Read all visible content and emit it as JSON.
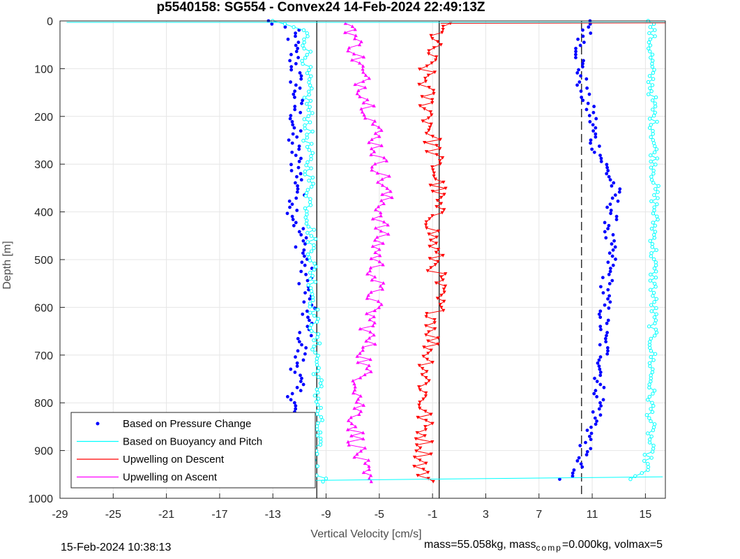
{
  "chart_data": {
    "type": "scatter",
    "title": "p5540158: SG554 - Convex24 14-Feb-2024 22:49:13Z",
    "xlabel": "Vertical Velocity [cm/s]",
    "ylabel": "Depth [m]",
    "xlim": [
      -29,
      16.5
    ],
    "ylim": [
      0,
      1000
    ],
    "y_reversed": true,
    "xticks": [
      -29,
      -25,
      -21,
      -17,
      -13,
      -9,
      -5,
      -1,
      3,
      7,
      11,
      15
    ],
    "yticks": [
      0,
      100,
      200,
      300,
      400,
      500,
      600,
      700,
      800,
      900,
      1000
    ],
    "grid": true,
    "legend_position": "bottom-left",
    "reference_lines": [
      {
        "x": -9.7,
        "style": "solid"
      },
      {
        "x": -0.5,
        "style": "solid"
      },
      {
        "x": 10.2,
        "style": "dashed"
      }
    ],
    "series": [
      {
        "name": "Based on Pressure Change",
        "color": "#0000ff",
        "marker": "dot",
        "descent": {
          "depth": [
            0,
            20,
            60,
            100,
            150,
            200,
            250,
            300,
            350,
            400,
            450,
            500,
            550,
            600,
            650,
            700,
            750,
            800,
            850,
            900,
            940,
            960
          ],
          "velocity": [
            -13.5,
            -11.5,
            -11.5,
            -11.3,
            -11.2,
            -11.3,
            -11.5,
            -11.2,
            -11.0,
            -11.4,
            -10.9,
            -10.6,
            -10.5,
            -10.4,
            -10.5,
            -11.0,
            -11.2,
            -11.4,
            -11.8,
            -12.2,
            -11.8,
            -11.6
          ]
        },
        "ascent": {
          "depth": [
            960,
            950,
            920,
            880,
            850,
            800,
            760,
            700,
            650,
            600,
            550,
            500,
            450,
            400,
            350,
            300,
            250,
            200,
            150,
            100,
            60,
            20,
            0
          ],
          "velocity": [
            8.4,
            9.5,
            10.2,
            10.6,
            11.1,
            11.6,
            11.5,
            11.9,
            11.8,
            11.9,
            12.1,
            12.4,
            12.2,
            12.5,
            12.7,
            11.9,
            11.1,
            11.0,
            10.3,
            10.1,
            10.1,
            10.6,
            11.0
          ]
        }
      },
      {
        "name": "Based on Buoyancy and Pitch",
        "color": "#00ffff",
        "marker": "circle",
        "descent": {
          "depth": [
            0,
            20,
            60,
            100,
            150,
            200,
            250,
            300,
            350,
            400,
            450,
            500,
            550,
            600,
            650,
            700,
            750,
            800,
            850,
            900,
            940,
            965
          ],
          "velocity": [
            -13.0,
            -10.6,
            -10.4,
            -10.5,
            -10.4,
            -10.3,
            -10.4,
            -10.3,
            -10.2,
            -10.3,
            -10.1,
            -10.0,
            -10.0,
            -9.9,
            -9.9,
            -9.7,
            -9.6,
            -9.6,
            -9.6,
            -9.8,
            -9.9,
            -9.0
          ]
        },
        "ascent": {
          "depth": [
            960,
            940,
            900,
            850,
            800,
            700,
            600,
            500,
            400,
            300,
            200,
            100,
            60,
            0
          ],
          "velocity": [
            14.0,
            15.0,
            15.3,
            15.4,
            15.4,
            15.5,
            15.6,
            15.6,
            15.7,
            15.7,
            15.6,
            15.4,
            15.4,
            15.5
          ]
        }
      },
      {
        "name": "Upwelling on Descent",
        "color": "#ff0000",
        "marker": "triangle-down",
        "depth": [
          5,
          50,
          100,
          150,
          200,
          250,
          300,
          350,
          400,
          450,
          500,
          550,
          600,
          650,
          700,
          750,
          800,
          850,
          900,
          940,
          965
        ],
        "velocity": [
          -0.3,
          -1.0,
          -1.5,
          -1.5,
          -1.2,
          -1.0,
          -0.8,
          -0.6,
          -0.8,
          -1.0,
          -0.8,
          -0.6,
          -0.7,
          -0.9,
          -1.2,
          -1.5,
          -1.7,
          -1.6,
          -1.6,
          -1.8,
          -1.5
        ]
      },
      {
        "name": "Upwelling on Ascent",
        "color": "#ff00ff",
        "marker": "triangle-up",
        "depth": [
          5,
          50,
          100,
          150,
          200,
          250,
          300,
          350,
          400,
          450,
          500,
          550,
          600,
          650,
          700,
          750,
          800,
          850,
          900,
          940,
          965
        ],
        "velocity": [
          -7.0,
          -6.8,
          -6.5,
          -6.0,
          -5.5,
          -5.2,
          -5.0,
          -4.6,
          -4.8,
          -5.0,
          -5.2,
          -5.3,
          -5.5,
          -5.8,
          -6.0,
          -6.3,
          -6.5,
          -6.8,
          -6.6,
          -6.4,
          -6.0
        ]
      }
    ]
  },
  "footer": {
    "timestamp": "15-Feb-2024 10:38:13",
    "mass_text": "mass=55.058kg, mass",
    "comp_sub": "comp",
    "rest_text": "=0.000kg, volmax=5"
  }
}
